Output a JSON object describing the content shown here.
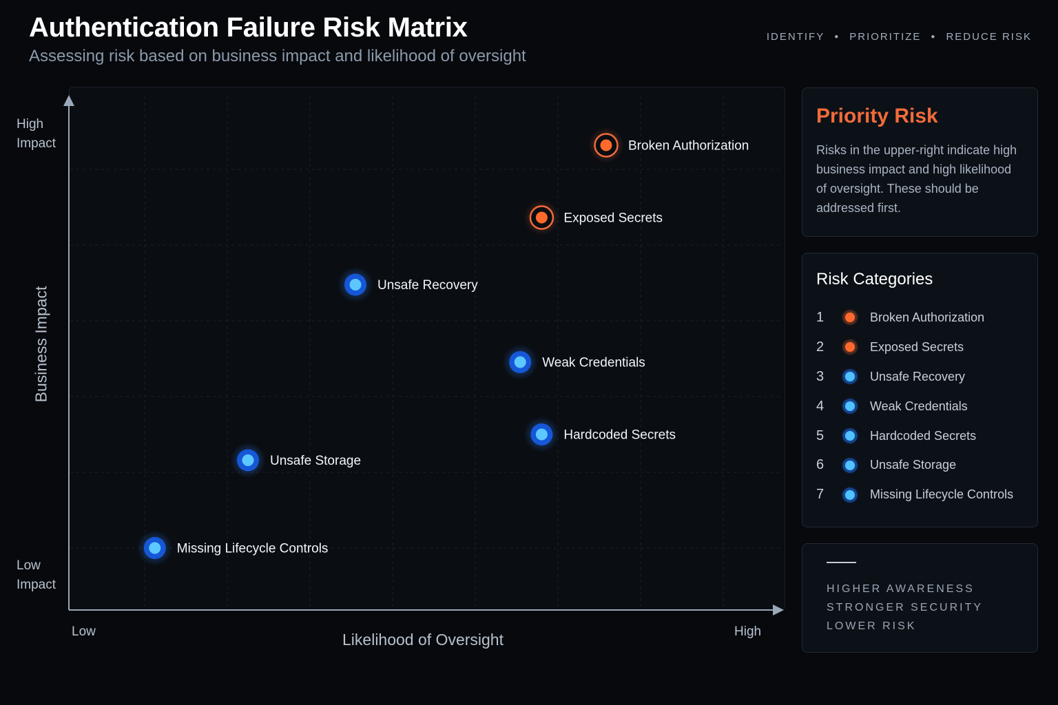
{
  "header": {
    "title": "Authentication Failure Risk Matrix",
    "subtitle": "Assessing risk based on business impact and likelihood of oversight",
    "tagline": [
      "IDENTIFY",
      "PRIORITIZE",
      "REDUCE RISK"
    ]
  },
  "chart_data": {
    "type": "scatter",
    "xlabel": "Likelihood of Oversight",
    "ylabel": "Business Impact",
    "x_tick_labels": {
      "low": "Low",
      "high": "High"
    },
    "y_tick_labels": {
      "high_line1": "High",
      "high_line2": "Impact",
      "low_line1": "Low",
      "low_line2": "Impact"
    },
    "xlim": [
      0,
      100
    ],
    "ylim": [
      0,
      100
    ],
    "grid": true,
    "points": [
      {
        "label": "Broken Authorization",
        "x": 75,
        "y": 90,
        "color": "orange"
      },
      {
        "label": "Exposed Secrets",
        "x": 66,
        "y": 76,
        "color": "orange"
      },
      {
        "label": "Unsafe Recovery",
        "x": 40,
        "y": 63,
        "color": "blue"
      },
      {
        "label": "Weak Credentials",
        "x": 63,
        "y": 48,
        "color": "blue"
      },
      {
        "label": "Hardcoded Secrets",
        "x": 66,
        "y": 34,
        "color": "blue"
      },
      {
        "label": "Unsafe Storage",
        "x": 25,
        "y": 29,
        "color": "blue"
      },
      {
        "label": "Missing Lifecycle Controls",
        "x": 12,
        "y": 12,
        "color": "blue"
      }
    ]
  },
  "priority_panel": {
    "title": "Priority Risk",
    "text": "Risks in the upper-right indicate high business impact and high likelihood of oversight. These should be addressed first."
  },
  "categories_panel": {
    "title": "Risk Categories",
    "items": [
      {
        "num": "1",
        "label": "Broken Authorization",
        "color": "orange"
      },
      {
        "num": "2",
        "label": "Exposed Secrets",
        "color": "orange"
      },
      {
        "num": "3",
        "label": "Unsafe Recovery",
        "color": "blue"
      },
      {
        "num": "4",
        "label": "Weak Credentials",
        "color": "blue"
      },
      {
        "num": "5",
        "label": "Hardcoded Secrets",
        "color": "blue"
      },
      {
        "num": "6",
        "label": "Unsafe Storage",
        "color": "blue"
      },
      {
        "num": "7",
        "label": "Missing Lifecycle Controls",
        "color": "blue"
      }
    ]
  },
  "motto_panel": {
    "lines": [
      "HIGHER AWARENESS",
      "STRONGER SECURITY",
      "LOWER RISK"
    ]
  },
  "colors": {
    "orange": "#f26b3a",
    "blue": "#2f86ff",
    "background": "#07090d"
  }
}
